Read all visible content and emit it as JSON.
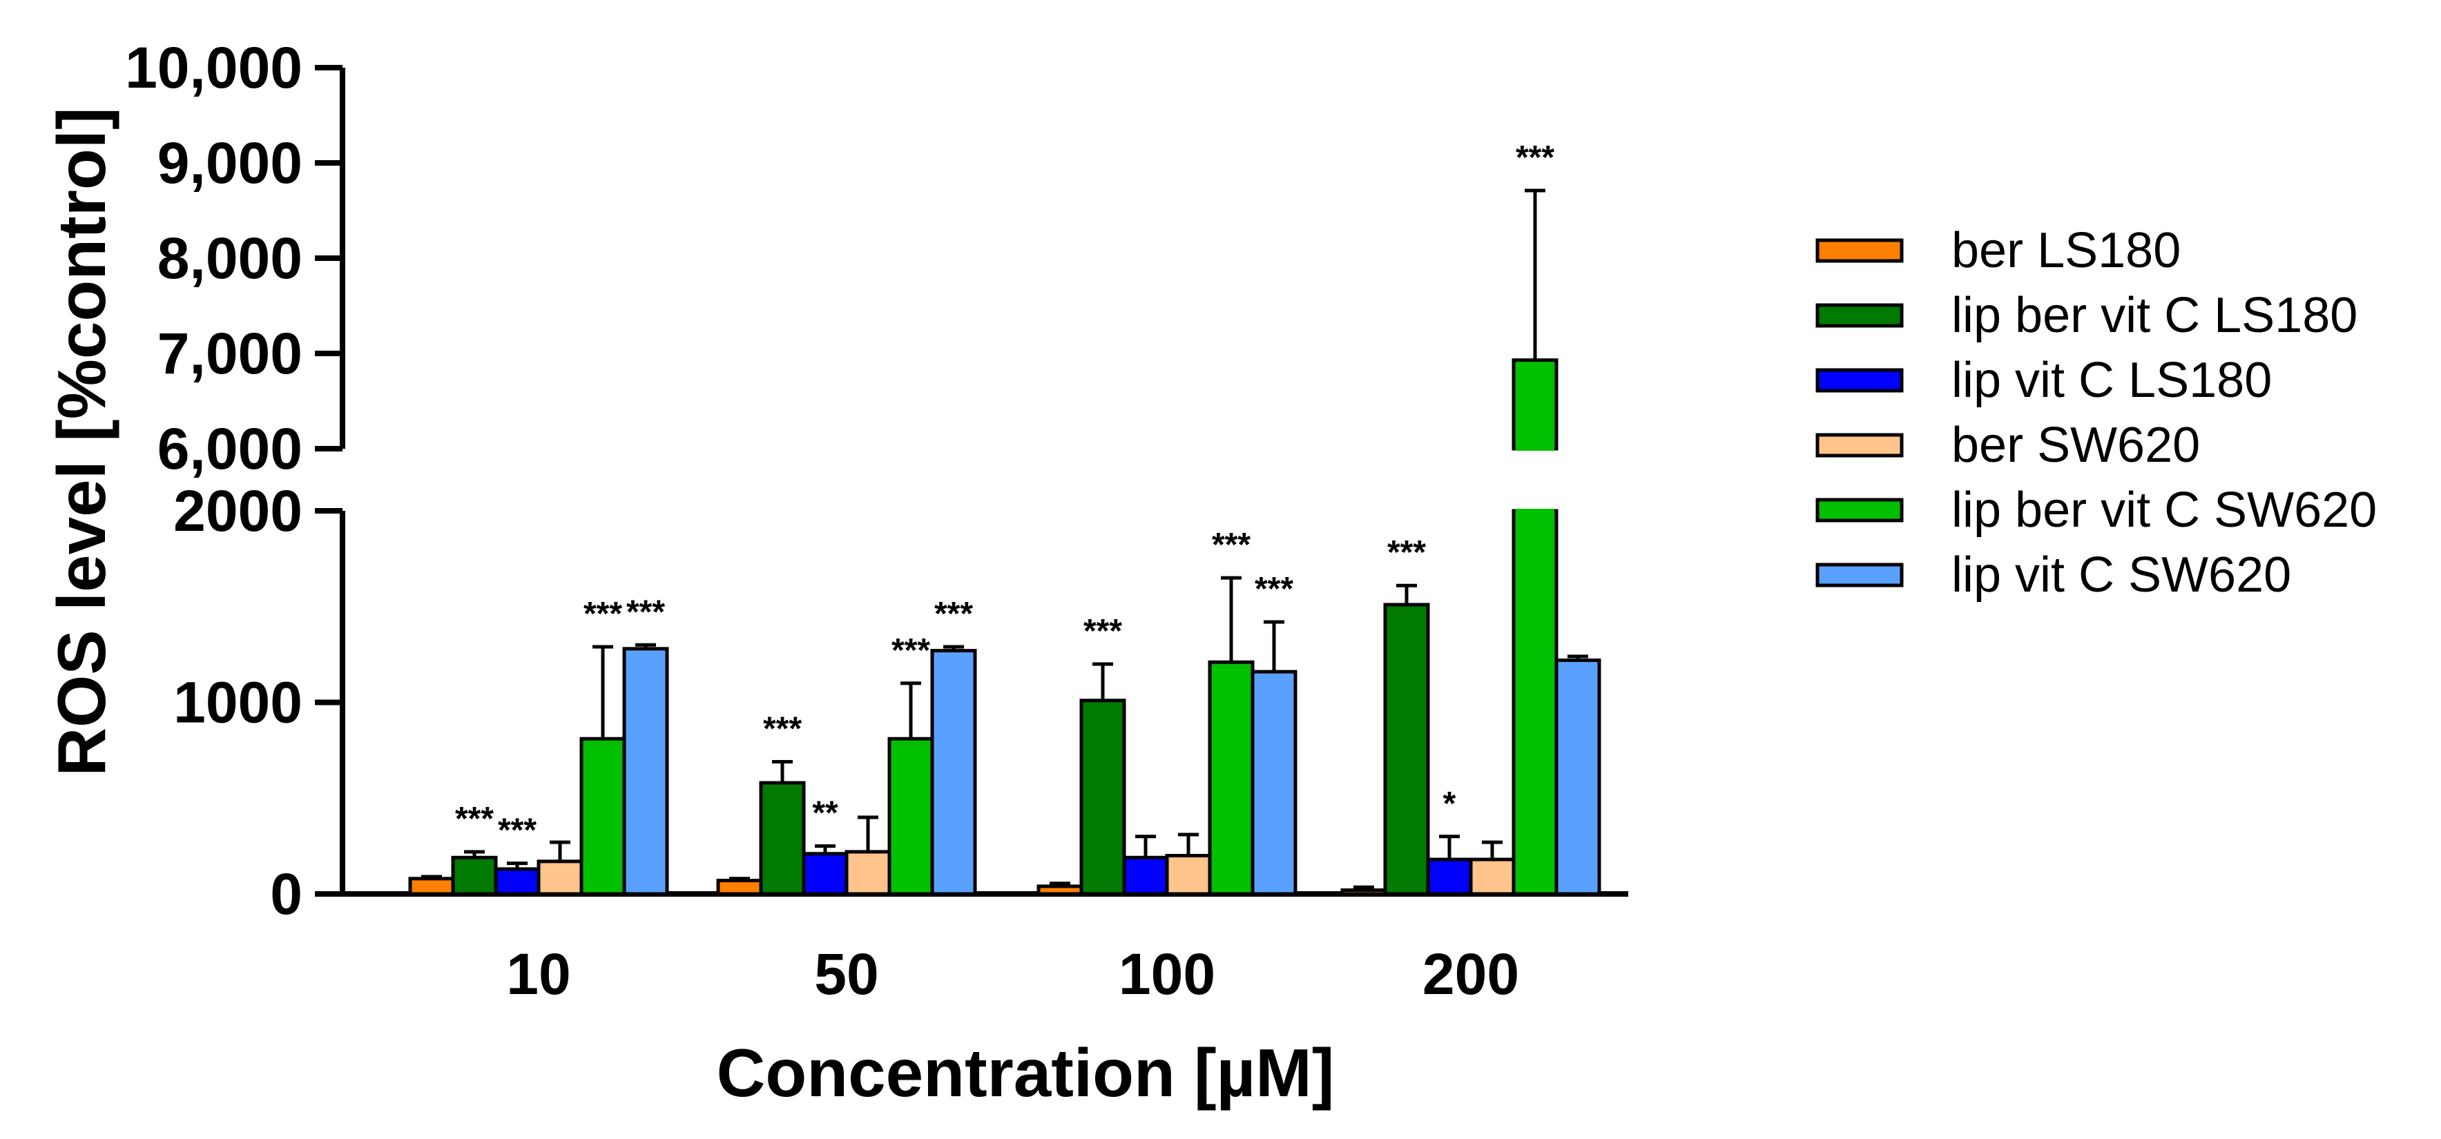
{
  "chart_data": {
    "type": "bar",
    "title": "",
    "xlabel": "Concentration [µM]",
    "ylabel": "ROS level [%control]",
    "categories": [
      "10",
      "50",
      "100",
      "200"
    ],
    "y_axis_break": {
      "lower_range": [
        0,
        2000
      ],
      "upper_range": [
        6000,
        10000
      ]
    },
    "lower_ticks": [
      {
        "value": 0,
        "label": "0"
      },
      {
        "value": 1000,
        "label": "1000"
      },
      {
        "value": 2000,
        "label": "2000"
      }
    ],
    "upper_ticks": [
      {
        "value": 6000,
        "label": "6,000"
      },
      {
        "value": 7000,
        "label": "7,000"
      },
      {
        "value": 8000,
        "label": "8,000"
      },
      {
        "value": 9000,
        "label": "9,000"
      },
      {
        "value": 10000,
        "label": "10,000"
      }
    ],
    "legend_position": "right",
    "series": [
      {
        "name": "ber LS180",
        "color": "#FF8000",
        "values": [
          80,
          70,
          40,
          20
        ],
        "errors": [
          10,
          10,
          15,
          15
        ],
        "significance": [
          "",
          "",
          "",
          ""
        ]
      },
      {
        "name": "lip ber vit C LS180",
        "color": "#007A00",
        "values": [
          190,
          580,
          1010,
          1510
        ],
        "errors": [
          30,
          110,
          190,
          100
        ],
        "significance": [
          "***",
          "***",
          "***",
          "***"
        ]
      },
      {
        "name": "lip vit C LS180",
        "color": "#0000FF",
        "values": [
          130,
          210,
          190,
          180
        ],
        "errors": [
          30,
          40,
          110,
          120
        ],
        "significance": [
          "***",
          "**",
          "",
          "*"
        ]
      },
      {
        "name": "ber SW620",
        "color": "#FFC48C",
        "values": [
          170,
          220,
          200,
          180
        ],
        "errors": [
          100,
          180,
          110,
          90
        ],
        "significance": [
          "",
          "",
          "",
          ""
        ]
      },
      {
        "name": "lip ber vit C SW620",
        "color": "#00C000",
        "values": [
          810,
          810,
          1210,
          6930
        ],
        "errors": [
          480,
          290,
          440,
          1780
        ],
        "significance": [
          "***",
          "***",
          "***",
          "***"
        ]
      },
      {
        "name": "lip vit C SW620",
        "color": "#5AA0FF",
        "values": [
          1280,
          1270,
          1160,
          1220
        ],
        "errors": [
          20,
          20,
          260,
          20
        ],
        "significance": [
          "***",
          "***",
          "***",
          ""
        ]
      }
    ]
  }
}
